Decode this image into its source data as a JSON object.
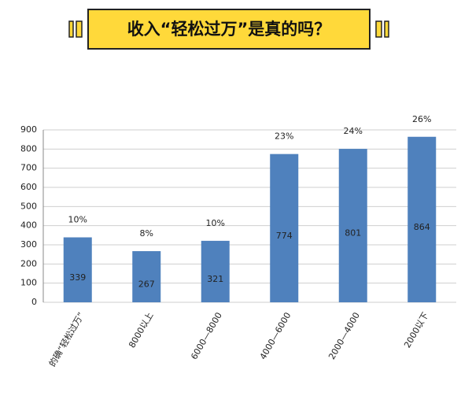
{
  "chart_data": {
    "type": "bar",
    "title": "收入“轻松过万”是真的吗？",
    "categories": [
      "的确“轻松过万”",
      "8000以上",
      "6000—8000",
      "4000—6000",
      "2000—4000",
      "2000以下"
    ],
    "values": [
      339,
      267,
      321,
      774,
      801,
      864
    ],
    "annotations": [
      "10%",
      "8%",
      "10%",
      "23%",
      "24%",
      "26%"
    ],
    "color": "#4f81bd",
    "ylim": [
      0,
      900
    ],
    "yticks": [
      0,
      100,
      200,
      300,
      400,
      500,
      600,
      700,
      800,
      900
    ],
    "grid": true
  }
}
